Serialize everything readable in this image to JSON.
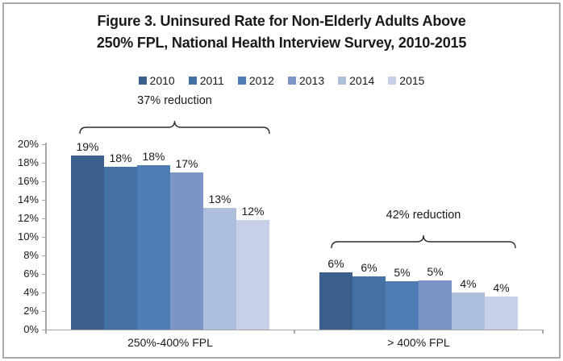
{
  "figure": {
    "title_lines": [
      "Figure 3. Uninsured Rate for Non-Elderly Adults Above",
      "250% FPL, National Health Interview Survey, 2010-2015"
    ]
  },
  "chart_data": {
    "type": "bar",
    "title": "Figure 3. Uninsured Rate for Non-Elderly Adults Above 250% FPL, National Health Interview Survey, 2010-2015",
    "xlabel": "",
    "ylabel": "",
    "categories": [
      "250%-400% FPL",
      "> 400% FPL"
    ],
    "series": [
      {
        "name": "2010",
        "color": "#3a5f8c",
        "values": [
          18.8,
          6.2
        ],
        "labels": [
          "19%",
          "6%"
        ]
      },
      {
        "name": "2011",
        "color": "#4471a3",
        "values": [
          17.6,
          5.7
        ],
        "labels": [
          "18%",
          "6%"
        ]
      },
      {
        "name": "2012",
        "color": "#4e7db6",
        "values": [
          17.7,
          5.2
        ],
        "labels": [
          "18%",
          "5%"
        ]
      },
      {
        "name": "2013",
        "color": "#7d95c6",
        "values": [
          17.0,
          5.3
        ],
        "labels": [
          "17%",
          "5%"
        ]
      },
      {
        "name": "2014",
        "color": "#aebedd",
        "values": [
          13.1,
          4.0
        ],
        "labels": [
          "13%",
          "4%"
        ]
      },
      {
        "name": "2015",
        "color": "#c6d1e7",
        "values": [
          11.8,
          3.6
        ],
        "labels": [
          "12%",
          "4%"
        ]
      }
    ],
    "ylim": [
      0,
      20
    ],
    "ytick_step": 2,
    "ytick_labels": [
      "0%",
      "2%",
      "4%",
      "6%",
      "8%",
      "10%",
      "12%",
      "14%",
      "16%",
      "18%",
      "20%"
    ],
    "grid": false,
    "legend_position": "top",
    "legend_entries": [
      "2010",
      "2011",
      "2012",
      "2013",
      "2014",
      "2015"
    ],
    "annotations": [
      {
        "text": "37% reduction",
        "category_index": 0
      },
      {
        "text": "42% reduction",
        "category_index": 1
      }
    ],
    "axis_color": "#a6a6a6"
  }
}
